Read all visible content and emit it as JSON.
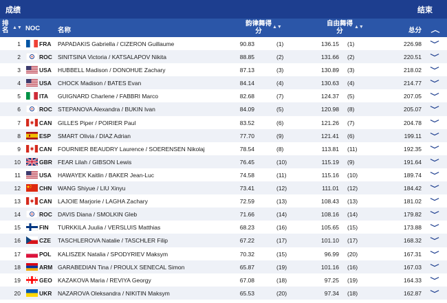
{
  "header": {
    "title": "成绩",
    "status": "结束"
  },
  "columns": {
    "rank": "排名",
    "noc": "NOC",
    "name": "名称",
    "rhythm_dance": "韵律舞得分",
    "free_dance": "自由舞得分",
    "total": "总分"
  },
  "rows": [
    {
      "rank": "1",
      "flag": "FRA",
      "noc": "FRA",
      "name": "PAPADAKIS Gabriella / CIZERON Guillaume",
      "rd": "90.83",
      "rd_rank": "(1)",
      "fd": "136.15",
      "fd_rank": "(1)",
      "total": "226.98"
    },
    {
      "rank": "2",
      "flag": "ROC",
      "noc": "ROC",
      "name": "SINITSINA Victoria / KATSALAPOV Nikita",
      "rd": "88.85",
      "rd_rank": "(2)",
      "fd": "131.66",
      "fd_rank": "(2)",
      "total": "220.51"
    },
    {
      "rank": "3",
      "flag": "USA",
      "noc": "USA",
      "name": "HUBBELL Madison / DONOHUE Zachary",
      "rd": "87.13",
      "rd_rank": "(3)",
      "fd": "130.89",
      "fd_rank": "(3)",
      "total": "218.02"
    },
    {
      "rank": "4",
      "flag": "USA",
      "noc": "USA",
      "name": "CHOCK Madison / BATES Evan",
      "rd": "84.14",
      "rd_rank": "(4)",
      "fd": "130.63",
      "fd_rank": "(4)",
      "total": "214.77"
    },
    {
      "rank": "5",
      "flag": "ITA",
      "noc": "ITA",
      "name": "GUIGNARD Charlene / FABBRI Marco",
      "rd": "82.68",
      "rd_rank": "(7)",
      "fd": "124.37",
      "fd_rank": "(5)",
      "total": "207.05"
    },
    {
      "rank": "6",
      "flag": "ROC",
      "noc": "ROC",
      "name": "STEPANOVA Alexandra / BUKIN Ivan",
      "rd": "84.09",
      "rd_rank": "(5)",
      "fd": "120.98",
      "fd_rank": "(8)",
      "total": "205.07"
    },
    {
      "rank": "7",
      "flag": "CAN",
      "noc": "CAN",
      "name": "GILLES Piper / POIRIER Paul",
      "rd": "83.52",
      "rd_rank": "(6)",
      "fd": "121.26",
      "fd_rank": "(7)",
      "total": "204.78"
    },
    {
      "rank": "8",
      "flag": "ESP",
      "noc": "ESP",
      "name": "SMART Olivia / DIAZ Adrian",
      "rd": "77.70",
      "rd_rank": "(9)",
      "fd": "121.41",
      "fd_rank": "(6)",
      "total": "199.11"
    },
    {
      "rank": "9",
      "flag": "CAN",
      "noc": "CAN",
      "name": "FOURNIER BEAUDRY Laurence / SOERENSEN Nikolaj",
      "rd": "78.54",
      "rd_rank": "(8)",
      "fd": "113.81",
      "fd_rank": "(11)",
      "total": "192.35"
    },
    {
      "rank": "10",
      "flag": "GBR",
      "noc": "GBR",
      "name": "FEAR Lilah / GIBSON Lewis",
      "rd": "76.45",
      "rd_rank": "(10)",
      "fd": "115.19",
      "fd_rank": "(9)",
      "total": "191.64"
    },
    {
      "rank": "11",
      "flag": "USA",
      "noc": "USA",
      "name": "HAWAYEK Kaitlin / BAKER Jean-Luc",
      "rd": "74.58",
      "rd_rank": "(11)",
      "fd": "115.16",
      "fd_rank": "(10)",
      "total": "189.74"
    },
    {
      "rank": "12",
      "flag": "CHN",
      "noc": "CHN",
      "name": "WANG Shiyue / LIU Xinyu",
      "rd": "73.41",
      "rd_rank": "(12)",
      "fd": "111.01",
      "fd_rank": "(12)",
      "total": "184.42"
    },
    {
      "rank": "13",
      "flag": "CAN",
      "noc": "CAN",
      "name": "LAJOIE Marjorie / LAGHA Zachary",
      "rd": "72.59",
      "rd_rank": "(13)",
      "fd": "108.43",
      "fd_rank": "(13)",
      "total": "181.02"
    },
    {
      "rank": "14",
      "flag": "ROC",
      "noc": "ROC",
      "name": "DAVIS Diana / SMOLKIN Gleb",
      "rd": "71.66",
      "rd_rank": "(14)",
      "fd": "108.16",
      "fd_rank": "(14)",
      "total": "179.82"
    },
    {
      "rank": "15",
      "flag": "FIN",
      "noc": "FIN",
      "name": "TURKKILA Juulia / VERSLUIS Matthias",
      "rd": "68.23",
      "rd_rank": "(16)",
      "fd": "105.65",
      "fd_rank": "(15)",
      "total": "173.88"
    },
    {
      "rank": "16",
      "flag": "CZE",
      "noc": "CZE",
      "name": "TASCHLEROVA Natalie / TASCHLER Filip",
      "rd": "67.22",
      "rd_rank": "(17)",
      "fd": "101.10",
      "fd_rank": "(17)",
      "total": "168.32"
    },
    {
      "rank": "17",
      "flag": "POL",
      "noc": "POL",
      "name": "KALISZEK Natalia / SPODYRIEV Maksym",
      "rd": "70.32",
      "rd_rank": "(15)",
      "fd": "96.99",
      "fd_rank": "(20)",
      "total": "167.31"
    },
    {
      "rank": "18",
      "flag": "ARM",
      "noc": "ARM",
      "name": "GARABEDIAN Tina / PROULX SENECAL Simon",
      "rd": "65.87",
      "rd_rank": "(19)",
      "fd": "101.16",
      "fd_rank": "(16)",
      "total": "167.03"
    },
    {
      "rank": "19",
      "flag": "GEO",
      "noc": "GEO",
      "name": "KAZAKOVA Maria / REVIYA Georgy",
      "rd": "67.08",
      "rd_rank": "(18)",
      "fd": "97.25",
      "fd_rank": "(19)",
      "total": "164.33"
    },
    {
      "rank": "20",
      "flag": "UKR",
      "noc": "UKR",
      "name": "NAZAROVA Oleksandra / NIKITIN Maksym",
      "rd": "65.53",
      "rd_rank": "(20)",
      "fd": "97.34",
      "fd_rank": "(18)",
      "total": "162.87"
    }
  ]
}
